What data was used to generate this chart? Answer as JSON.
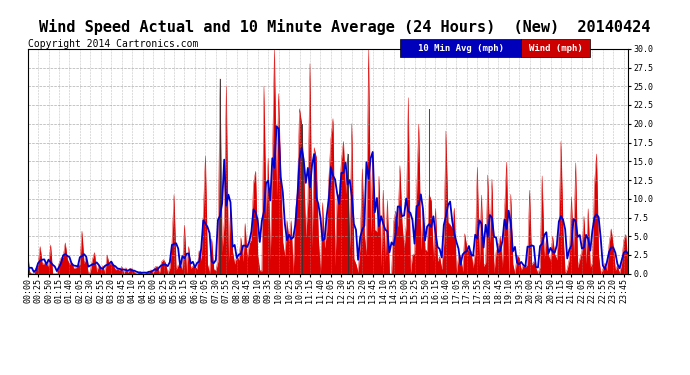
{
  "title": "Wind Speed Actual and 10 Minute Average (24 Hours)  (New)  20140424",
  "copyright": "Copyright 2014 Cartronics.com",
  "legend_10min_label": "10 Min Avg (mph)",
  "legend_wind_label": "Wind (mph)",
  "legend_10min_bg": "#0000bb",
  "legend_wind_bg": "#cc0000",
  "bg_color": "#ffffff",
  "plot_bg_color": "#ffffff",
  "grid_color": "#999999",
  "wind_color": "#dd0000",
  "avg_color": "#0000cc",
  "dark_line_color": "#333333",
  "ylim": [
    0.0,
    30.0
  ],
  "yticks": [
    0.0,
    2.5,
    5.0,
    7.5,
    10.0,
    12.5,
    15.0,
    17.5,
    20.0,
    22.5,
    25.0,
    27.5,
    30.0
  ],
  "title_fontsize": 11,
  "copyright_fontsize": 7,
  "tick_fontsize": 6,
  "seed": 12345
}
